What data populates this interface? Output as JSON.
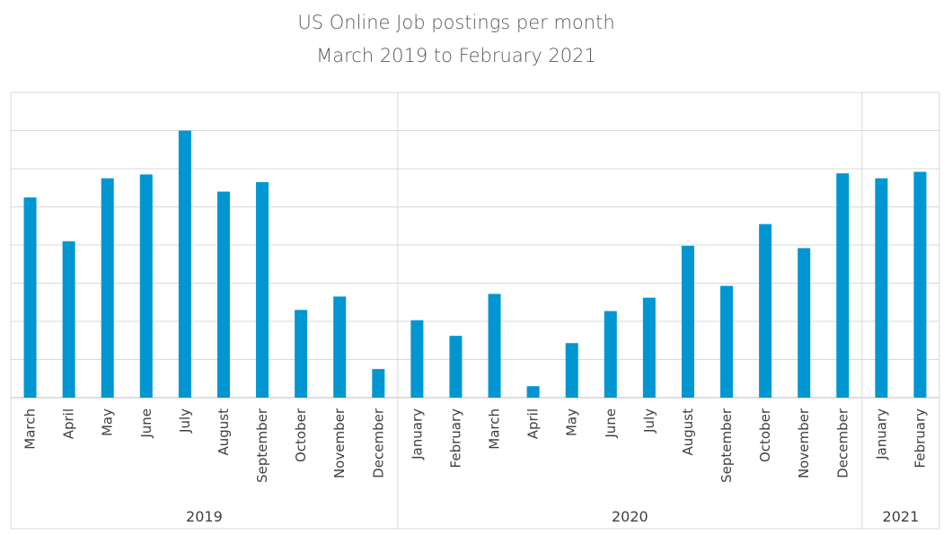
{
  "chart_data": {
    "type": "bar",
    "title": "US Online Job postings per month",
    "subtitle": "March 2019 to February 2021",
    "xlabel": "",
    "ylabel": "",
    "ylim": [
      0,
      8
    ],
    "grid": true,
    "legend": "none",
    "bar_color": "#0096D2",
    "categories": [
      "March",
      "April",
      "May",
      "June",
      "July",
      "August",
      "September",
      "October",
      "November",
      "December",
      "January",
      "February",
      "March",
      "April",
      "May",
      "June",
      "July",
      "August",
      "September",
      "October",
      "November",
      "December",
      "January",
      "February"
    ],
    "series": [
      {
        "values": [
          5.25,
          4.1,
          5.75,
          5.85,
          7.0,
          5.4,
          5.65,
          2.3,
          2.65,
          0.75,
          2.03,
          1.62,
          2.72,
          0.3,
          1.43,
          2.27,
          2.62,
          3.98,
          2.93,
          4.55,
          3.92,
          5.88,
          5.75,
          5.92
        ]
      }
    ],
    "groups": [
      {
        "label": "2019",
        "count": 10
      },
      {
        "label": "2020",
        "count": 12
      },
      {
        "label": "2021",
        "count": 2
      }
    ]
  }
}
